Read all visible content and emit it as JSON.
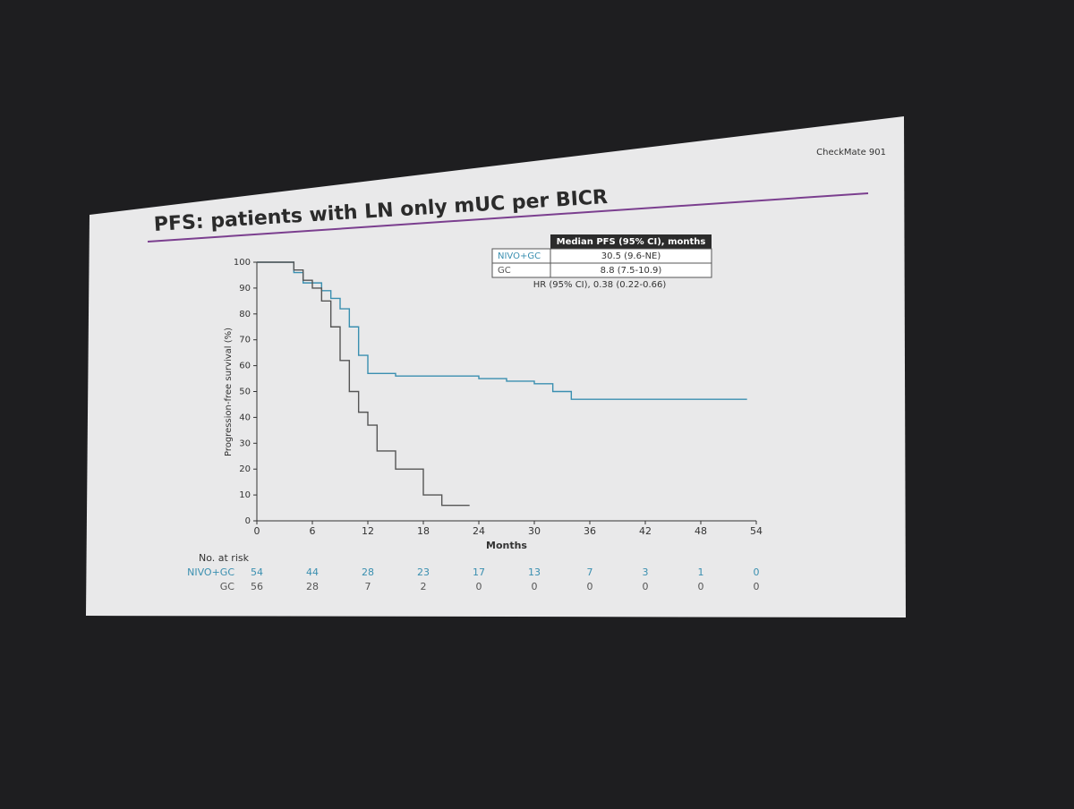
{
  "chart_data": {
    "type": "line",
    "corner_label": "CheckMate 901",
    "title": "PFS: patients with LN only mUC per BICR",
    "y_label": "Progression-free survival (%)",
    "x_label": "Months",
    "step": true,
    "xlim": [
      0,
      54
    ],
    "xticks": [
      0,
      6,
      12,
      18,
      24,
      30,
      36,
      42,
      48,
      54
    ],
    "ylim": [
      0,
      100
    ],
    "yticks": [
      0,
      10,
      20,
      30,
      40,
      50,
      60,
      70,
      80,
      90,
      100
    ],
    "series": [
      {
        "name": "NIVO+GC",
        "color": "#3a8fb0",
        "x": [
          0,
          4,
          5,
          7,
          8,
          9,
          10,
          11,
          12,
          15,
          24,
          27,
          30,
          32,
          34,
          53
        ],
        "values": [
          100,
          96,
          92,
          89,
          86,
          82,
          75,
          64,
          57,
          56,
          55,
          54,
          53,
          50,
          47,
          47
        ]
      },
      {
        "name": "GC",
        "color": "#555555",
        "x": [
          0,
          4,
          5,
          6,
          7,
          8,
          9,
          10,
          11,
          12,
          13,
          15,
          18,
          20,
          23
        ],
        "values": [
          100,
          97,
          93,
          90,
          85,
          75,
          62,
          50,
          42,
          37,
          27,
          20,
          10,
          6,
          6
        ]
      }
    ],
    "summary_table": {
      "header": "Median PFS (95% CI), months",
      "rows": [
        [
          "NIVO+GC",
          "30.5 (9.6-NE)"
        ],
        [
          "GC",
          "8.8 (7.5-10.9)"
        ]
      ],
      "footnote": "HR (95% CI), 0.38 (0.22-0.66)"
    },
    "risk_table": {
      "title": "No. at risk",
      "rows": [
        {
          "name": "NIVO+GC",
          "values": [
            54,
            44,
            28,
            23,
            17,
            13,
            7,
            3,
            1,
            0
          ]
        },
        {
          "name": "GC",
          "values": [
            56,
            28,
            7,
            2,
            0,
            0,
            0,
            0,
            0,
            0
          ]
        }
      ]
    }
  }
}
